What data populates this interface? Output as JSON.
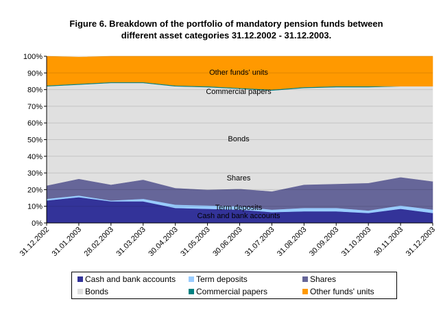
{
  "title_line1": "Figure 6. Breakdown of the portfolio of mandatory pension funds between",
  "title_line2": "different asset categories 31.12.2002 - 31.12.2003.",
  "chart_data": {
    "type": "area",
    "stacked": true,
    "grid": true,
    "legend_position": "bottom",
    "ylim": [
      0,
      100
    ],
    "y_ticks": [
      "0%",
      "10%",
      "20%",
      "30%",
      "40%",
      "50%",
      "60%",
      "70%",
      "80%",
      "90%",
      "100%"
    ],
    "categories": [
      "31.12.2002",
      "31.01.2003",
      "28.02.2003",
      "31.03.2003",
      "30.04.2003",
      "31.05.2003",
      "30.06.2003",
      "31.07.2003",
      "31.08.2003",
      "30.09.2003",
      "31.10.2003",
      "30.11.2003",
      "31.12.2003"
    ],
    "series": [
      {
        "name": "Cash and bank accounts",
        "color": "#333399",
        "values": [
          13.5,
          15.5,
          13,
          13,
          9,
          8.5,
          8,
          6.5,
          7,
          7,
          6,
          8.5,
          6
        ]
      },
      {
        "name": "Term deposits",
        "color": "#99ccff",
        "values": [
          1,
          1,
          0.5,
          1.5,
          2,
          2,
          2,
          1.5,
          2,
          2,
          1.5,
          2,
          2
        ]
      },
      {
        "name": "Shares",
        "color": "#666699",
        "values": [
          8,
          10,
          9.5,
          11.5,
          10,
          9.5,
          10.5,
          11,
          14,
          14.5,
          16.5,
          17,
          17
        ]
      },
      {
        "name": "Bonds",
        "color": "#e0e0e0",
        "values": [
          59.5,
          56.5,
          61,
          58,
          61,
          61.5,
          60,
          60.5,
          58,
          58,
          57.5,
          54.5,
          57
        ]
      },
      {
        "name": "Commercial papers",
        "color": "#008080",
        "values": [
          0.5,
          0.5,
          0.5,
          0.5,
          0.5,
          0.5,
          0.5,
          0.5,
          0.5,
          0.5,
          0.5,
          0,
          0
        ]
      },
      {
        "name": "Other funds' units",
        "color": "#ff9900",
        "values": [
          17.5,
          16,
          15.5,
          15.5,
          17.5,
          18,
          19,
          20,
          18.5,
          18,
          18,
          18,
          18
        ]
      }
    ],
    "annotations": [
      {
        "text": "Other funds' units",
        "series": "Other funds' units"
      },
      {
        "text": "Commercial papers",
        "series": "Commercial papers"
      },
      {
        "text": "Bonds",
        "series": "Bonds"
      },
      {
        "text": "Shares",
        "series": "Shares"
      },
      {
        "text": "Term deposits",
        "series": "Term deposits"
      },
      {
        "text": "Cash and bank accounts",
        "series": "Cash and bank accounts"
      }
    ]
  }
}
